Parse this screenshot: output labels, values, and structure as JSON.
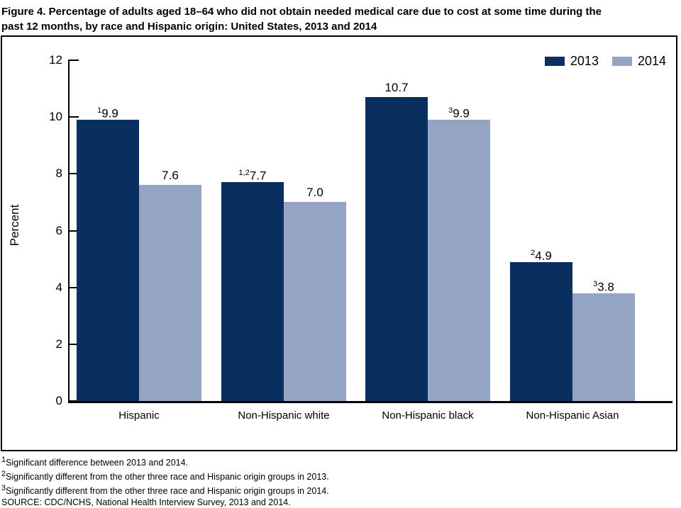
{
  "figure": {
    "title_line1": "Figure 4. Percentage of adults aged 18–64 who did not obtain needed medical care due to cost at some time during the",
    "title_line2": "past 12 months, by race and Hispanic origin: United States, 2013 and 2014"
  },
  "chart_data": {
    "type": "bar",
    "title": "Figure 4. Percentage of adults aged 18–64 who did not obtain needed medical care due to cost at some time during the past 12 months, by race and Hispanic origin: United States, 2013 and 2014",
    "categories": [
      "Hispanic",
      "Non-Hispanic white",
      "Non-Hispanic black",
      "Non-Hispanic Asian"
    ],
    "series": [
      {
        "name": "2013",
        "color": "#082f5e",
        "values": [
          9.9,
          7.7,
          10.7,
          4.9
        ],
        "label_sups": [
          "1",
          "1,2",
          "",
          "2"
        ]
      },
      {
        "name": "2014",
        "color": "#96a4c4",
        "values": [
          7.6,
          7.0,
          9.9,
          3.8
        ],
        "label_sups": [
          "",
          "",
          "3",
          "3"
        ]
      }
    ],
    "xlabel": "",
    "ylabel": "Percent",
    "ylim": [
      0,
      12
    ],
    "yticks": [
      0,
      2,
      4,
      6,
      8,
      10,
      12
    ],
    "grid": false,
    "legend_position": "top-right"
  },
  "footnotes": [
    {
      "sup": "1",
      "text": "Significant difference between 2013 and 2014."
    },
    {
      "sup": "2",
      "text": "Significantly different from the other three race and Hispanic origin groups in 2013."
    },
    {
      "sup": "3",
      "text": "Significantly different from the other three race and Hispanic origin groups in 2014."
    },
    {
      "sup": "",
      "text": "SOURCE: CDC/NCHS, National Health Interview Survey, 2013 and 2014."
    }
  ]
}
